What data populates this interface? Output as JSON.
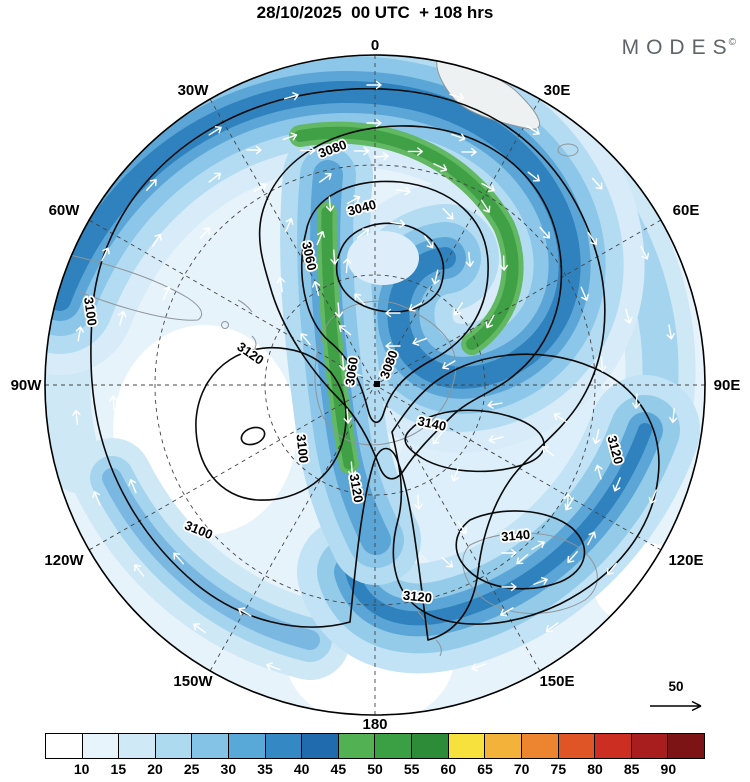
{
  "header": {
    "title": "28/10/2025  00 UTC  + 108 hrs",
    "brand": "MODES",
    "brand_mark": "©"
  },
  "map": {
    "longitude_labels": [
      "0",
      "30E",
      "60E",
      "90E",
      "120E",
      "150E",
      "180",
      "150W",
      "120W",
      "90W",
      "60W",
      "30W"
    ],
    "contour_labels": [
      "3080",
      "3040",
      "3060",
      "3100",
      "3120",
      "3060",
      "3080",
      "3100",
      "3120",
      "3140",
      "3140",
      "3120",
      "3100",
      "3120"
    ],
    "reference_vector": {
      "label": "50"
    }
  },
  "colorbar": {
    "tick_labels": [
      "10",
      "15",
      "20",
      "25",
      "30",
      "35",
      "40",
      "45",
      "50",
      "55",
      "60",
      "65",
      "70",
      "75",
      "80",
      "85",
      "90"
    ],
    "colors": [
      "#ffffff",
      "#e8f4fb",
      "#cfe9f7",
      "#aedaf0",
      "#85c3e6",
      "#58a8d8",
      "#3489c4",
      "#1f6bae",
      "#52b152",
      "#3aa043",
      "#2c8c38",
      "#f6e13d",
      "#f3b33a",
      "#ec8430",
      "#e05526",
      "#cc2f22",
      "#a81d1e",
      "#7c1416"
    ]
  },
  "chart_data": {
    "type": "heatmap",
    "title": "28/10/2025 00 UTC + 108 hrs",
    "projection": "polar stereographic circle, dashed 30-degree graticule",
    "longitude_ring_labels": [
      "0",
      "30E",
      "60E",
      "90E",
      "120E",
      "150E",
      "180",
      "150W",
      "120W",
      "90W",
      "60W",
      "30W"
    ],
    "shading_colorbar": {
      "tick_values": [
        10,
        15,
        20,
        25,
        30,
        35,
        40,
        45,
        50,
        55,
        60,
        65,
        70,
        75,
        80,
        85,
        90
      ],
      "colors": [
        "#ffffff",
        "#e8f4fb",
        "#cfe9f7",
        "#aedaf0",
        "#85c3e6",
        "#58a8d8",
        "#3489c4",
        "#1f6bae",
        "#52b152",
        "#3aa043",
        "#2c8c38",
        "#f6e13d",
        "#f3b33a",
        "#ec8430",
        "#e05526",
        "#cc2f22",
        "#a81d1e",
        "#7c1416"
      ],
      "position": "bottom"
    },
    "contour_labeled_levels": [
      3040,
      3060,
      3080,
      3100,
      3120,
      3140
    ],
    "contour_label_instances": [
      "3080",
      "3040",
      "3060",
      "3100",
      "3120",
      "3060",
      "3080",
      "3100",
      "3120",
      "3140",
      "3140",
      "3120",
      "3100",
      "3120"
    ],
    "vector_overlay": "white wind arrows",
    "reference_vector_value": 50
  }
}
